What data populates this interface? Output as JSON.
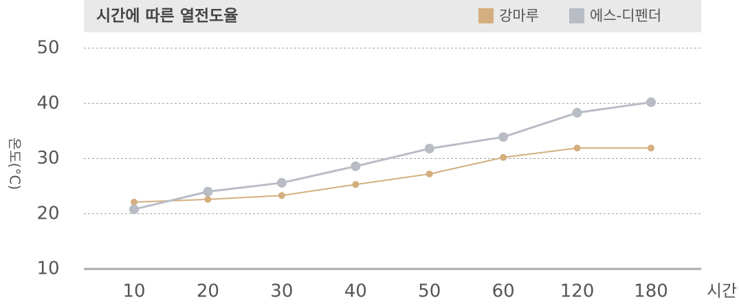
{
  "chart_data": {
    "type": "line",
    "title": "시간에 따른 열전도율",
    "x_label": "시간",
    "y_label": "온도(°C)",
    "categories": [
      "10",
      "20",
      "30",
      "40",
      "50",
      "60",
      "120",
      "180"
    ],
    "series": [
      {
        "name": "강마루",
        "color": "#d4ae7e",
        "values": [
          22.1,
          22.6,
          23.3,
          25.3,
          27.2,
          30.2,
          31.9,
          31.9
        ]
      },
      {
        "name": "에스-디펜더",
        "color": "#b8bcc4",
        "values": [
          20.8,
          24.0,
          25.6,
          28.6,
          31.8,
          33.9,
          38.3,
          40.2
        ]
      }
    ],
    "ylim": [
      10,
      50
    ],
    "yticks": [
      10,
      20,
      30,
      40,
      50
    ],
    "grid": true
  }
}
